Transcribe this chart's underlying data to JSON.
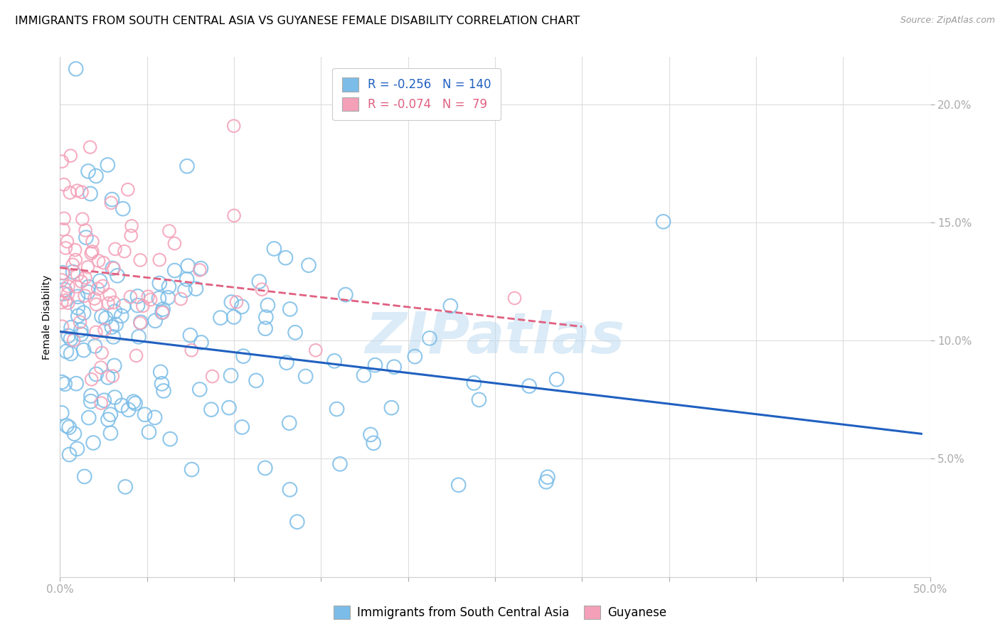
{
  "title": "IMMIGRANTS FROM SOUTH CENTRAL ASIA VS GUYANESE FEMALE DISABILITY CORRELATION CHART",
  "source": "Source: ZipAtlas.com",
  "ylabel": "Female Disability",
  "legend_line1": "R = -0.256   N = 140",
  "legend_line2": "R = -0.074   N =  79",
  "legend_blue_label": "Immigrants from South Central Asia",
  "legend_pink_label": "Guyanese",
  "watermark": "ZIPatlas",
  "xlim": [
    0.0,
    0.5
  ],
  "ylim": [
    0.0,
    0.22
  ],
  "blue_color": "#7bbde8",
  "pink_color": "#f4a0b8",
  "trend_blue_color": "#2060c0",
  "trend_pink_color": "#e06080",
  "blue_N": 140,
  "pink_N": 79,
  "blue_R": -0.256,
  "pink_R": -0.074,
  "title_fontsize": 11.5,
  "axis_label_fontsize": 10,
  "tick_fontsize": 11,
  "legend_fontsize": 12,
  "source_fontsize": 9
}
